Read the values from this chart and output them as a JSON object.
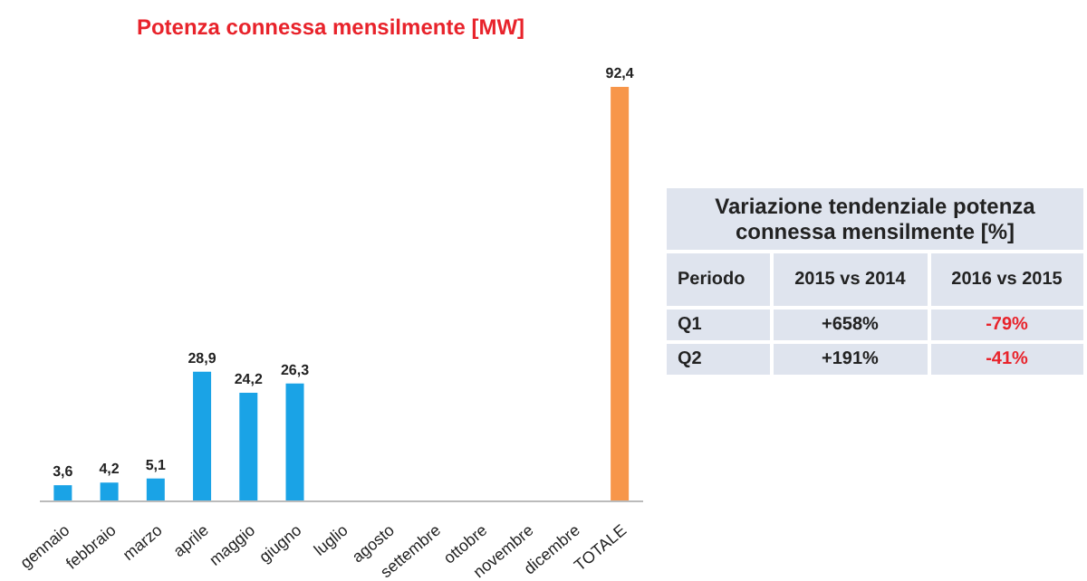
{
  "chart_data": [
    {
      "type": "bar",
      "title": "Potenza connessa mensilmente [MW]",
      "categories": [
        "gennaio",
        "febbraio",
        "marzo",
        "aprile",
        "maggio",
        "giugno",
        "luglio",
        "agosto",
        "settembre",
        "ottobre",
        "novembre",
        "dicembre",
        "TOTALE"
      ],
      "values": [
        3.6,
        4.2,
        5.1,
        28.9,
        24.2,
        26.3,
        null,
        null,
        null,
        null,
        null,
        null,
        92.4
      ],
      "colors": [
        "#1aa3e6",
        "#1aa3e6",
        "#1aa3e6",
        "#1aa3e6",
        "#1aa3e6",
        "#1aa3e6",
        "#1aa3e6",
        "#1aa3e6",
        "#1aa3e6",
        "#1aa3e6",
        "#1aa3e6",
        "#1aa3e6",
        "#f7964a"
      ],
      "value_labels": [
        "3,6",
        "4,2",
        "5,1",
        "28,9",
        "24,2",
        "26,3",
        null,
        null,
        null,
        null,
        null,
        null,
        "92,4"
      ]
    },
    {
      "type": "other",
      "title": "Variazione tendenziale potenza connessa mensilmente [%]",
      "annotations": [
        "Periodo",
        "2015 vs 2014",
        "2016 vs 2015",
        "Q1",
        "+658%",
        "-79%",
        "Q2",
        "+191%",
        "-41%"
      ]
    }
  ]
}
